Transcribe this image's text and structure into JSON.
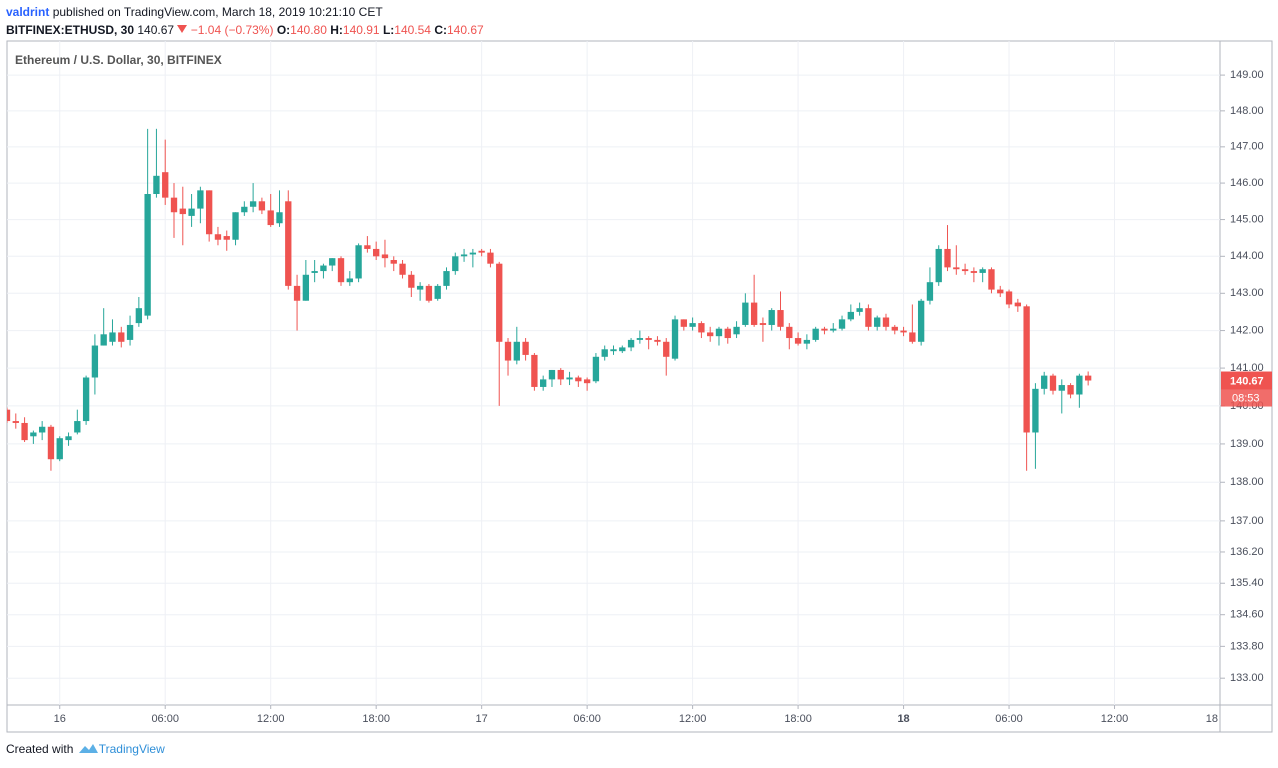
{
  "header": {
    "author": "valdrint",
    "published": "published on TradingView.com, March 18, 2019 10:21:10 CET",
    "symbol": "BITFINEX:ETHUSD, 30",
    "change": "−1.04 (−0.73%)",
    "ohlc_legend": [
      {
        "key": "O:",
        "value": "140.80"
      },
      {
        "key": "H:",
        "value": "140.91"
      },
      {
        "key": "L:",
        "value": "140.54"
      },
      {
        "key": "C:",
        "value": "140.67"
      }
    ]
  },
  "chart_data": {
    "type": "candlestick",
    "title": "Ethereum / U.S. Dollar, 30, BITFINEX",
    "up_color": "#26a69a",
    "down_color": "#ef5350",
    "log_scale": true,
    "grid": true,
    "countdown": "08:53",
    "x": [
      -3,
      -2.5,
      -2,
      -1.5,
      -1,
      -0.5,
      0,
      0.5,
      1,
      1.5,
      2,
      2.5,
      3,
      3.5,
      4,
      4.5,
      5,
      5.5,
      6,
      6.5,
      7,
      7.5,
      8,
      8.5,
      9,
      9.5,
      10,
      10.5,
      11,
      11.5,
      12,
      12.5,
      13,
      13.5,
      14,
      14.5,
      15,
      15.5,
      16,
      16.5,
      17,
      17.5,
      18,
      18.5,
      19,
      19.5,
      20,
      20.5,
      21,
      21.5,
      22,
      22.5,
      23,
      23.5,
      24,
      24.5,
      25,
      25.5,
      26,
      26.5,
      27,
      27.5,
      28,
      28.5,
      29,
      29.5,
      30,
      30.5,
      31,
      31.5,
      32,
      32.5,
      33,
      33.5,
      34,
      34.5,
      35,
      35.5,
      36,
      36.5,
      37,
      37.5,
      38,
      38.5,
      39,
      39.5,
      40,
      40.5,
      41,
      41.5,
      42,
      42.5,
      43,
      43.5,
      44,
      44.5,
      45,
      45.5,
      46,
      46.5,
      47,
      47.5,
      48,
      48.5,
      49,
      49.5,
      50,
      50.5,
      51,
      51.5,
      52,
      52.5,
      53,
      53.5,
      54,
      54.5,
      55,
      55.5,
      56,
      56.5,
      57,
      57.5,
      58,
      58.5
    ],
    "open": [
      139.9,
      139.6,
      139.55,
      139.2,
      139.3,
      139.45,
      138.6,
      139.1,
      139.3,
      139.6,
      140.75,
      141.6,
      141.7,
      141.95,
      141.75,
      142.2,
      142.4,
      145.7,
      146.3,
      145.6,
      145.3,
      145.1,
      145.3,
      145.8,
      144.6,
      144.55,
      144.45,
      145.2,
      145.35,
      145.5,
      145.25,
      144.9,
      145.5,
      143.2,
      142.8,
      143.55,
      143.6,
      143.75,
      143.95,
      143.3,
      143.4,
      144.3,
      144.2,
      144.05,
      143.9,
      143.8,
      143.5,
      143.1,
      143.2,
      142.85,
      143.2,
      143.6,
      144.0,
      144.05,
      144.15,
      144.1,
      143.8,
      141.7,
      141.2,
      141.7,
      141.35,
      140.5,
      140.7,
      140.95,
      140.7,
      140.75,
      140.7,
      140.65,
      141.3,
      141.45,
      141.45,
      141.55,
      141.75,
      141.8,
      141.75,
      141.7,
      141.25,
      142.3,
      142.1,
      142.2,
      141.95,
      141.85,
      142.05,
      141.9,
      142.15,
      142.75,
      142.2,
      142.15,
      142.55,
      142.1,
      141.8,
      141.65,
      141.75,
      142.05,
      142.0,
      142.05,
      142.3,
      142.5,
      142.6,
      142.1,
      142.35,
      142.1,
      142.0,
      141.95,
      141.7,
      142.8,
      143.3,
      144.2,
      143.7,
      143.65,
      143.6,
      143.55,
      143.65,
      143.1,
      143.05,
      142.75,
      142.65,
      139.3,
      140.45,
      140.8,
      140.4,
      140.55,
      140.3,
      140.8
    ],
    "high": [
      139.95,
      139.8,
      139.7,
      139.35,
      139.6,
      139.5,
      139.2,
      139.3,
      139.9,
      140.8,
      141.9,
      142.6,
      142.3,
      142.1,
      142.4,
      142.9,
      147.5,
      147.5,
      147.2,
      146.0,
      145.9,
      145.7,
      145.9,
      145.8,
      144.8,
      144.7,
      145.2,
      145.5,
      146.0,
      145.6,
      145.7,
      145.8,
      145.8,
      143.5,
      143.9,
      143.9,
      143.8,
      143.95,
      144.0,
      143.6,
      144.35,
      144.55,
      144.4,
      144.45,
      144.0,
      143.9,
      143.6,
      143.3,
      143.25,
      143.25,
      143.7,
      144.1,
      144.2,
      144.2,
      144.2,
      144.2,
      143.85,
      141.8,
      142.1,
      141.8,
      141.4,
      140.8,
      140.95,
      141.0,
      140.9,
      140.8,
      140.75,
      141.4,
      141.6,
      141.6,
      141.6,
      141.8,
      142.0,
      141.85,
      141.85,
      141.8,
      142.4,
      142.3,
      142.35,
      142.25,
      142.1,
      142.1,
      142.1,
      142.25,
      143.0,
      143.5,
      142.35,
      142.6,
      143.05,
      142.2,
      141.95,
      141.9,
      142.1,
      142.1,
      142.2,
      142.4,
      142.7,
      142.75,
      142.7,
      142.4,
      142.45,
      142.15,
      142.1,
      142.7,
      142.85,
      143.7,
      144.3,
      144.85,
      144.3,
      143.8,
      143.7,
      143.7,
      143.7,
      143.2,
      143.1,
      142.85,
      142.7,
      140.6,
      140.9,
      140.85,
      140.7,
      140.6,
      140.85,
      140.91
    ],
    "low": [
      139.55,
      139.4,
      139.05,
      139.0,
      139.1,
      138.3,
      138.55,
      138.95,
      139.25,
      139.5,
      140.3,
      141.6,
      141.6,
      141.55,
      141.6,
      142.1,
      142.3,
      145.6,
      145.4,
      144.5,
      144.3,
      144.8,
      144.9,
      144.4,
      144.3,
      144.15,
      144.3,
      145.1,
      145.2,
      145.15,
      144.8,
      144.8,
      143.1,
      142.0,
      142.8,
      143.3,
      143.4,
      143.6,
      143.2,
      143.2,
      143.3,
      144.1,
      143.9,
      143.7,
      143.6,
      143.4,
      142.9,
      142.8,
      142.75,
      142.8,
      143.1,
      143.5,
      143.85,
      143.7,
      144.0,
      143.7,
      140.0,
      140.8,
      141.1,
      141.2,
      140.4,
      140.4,
      140.5,
      140.55,
      140.55,
      140.5,
      140.4,
      140.6,
      141.2,
      141.35,
      141.4,
      141.45,
      141.65,
      141.5,
      141.6,
      140.8,
      141.2,
      142.0,
      142.0,
      141.8,
      141.7,
      141.6,
      141.65,
      141.8,
      142.1,
      142.1,
      141.7,
      142.0,
      142.0,
      141.5,
      141.6,
      141.5,
      141.7,
      141.9,
      141.95,
      142.0,
      142.25,
      142.4,
      142.0,
      142.0,
      142.0,
      141.9,
      141.85,
      141.65,
      141.6,
      142.7,
      143.2,
      143.6,
      143.5,
      143.5,
      143.3,
      143.3,
      143.0,
      142.9,
      142.6,
      142.5,
      138.3,
      138.35,
      140.3,
      140.3,
      139.8,
      140.2,
      139.95,
      140.54
    ],
    "close": [
      139.6,
      139.55,
      139.1,
      139.3,
      139.45,
      138.6,
      139.15,
      139.2,
      139.6,
      140.75,
      141.6,
      141.9,
      141.95,
      141.7,
      142.15,
      142.6,
      145.7,
      146.2,
      145.6,
      145.2,
      145.15,
      145.3,
      145.8,
      144.6,
      144.45,
      144.45,
      145.2,
      145.35,
      145.5,
      145.25,
      144.85,
      145.2,
      143.2,
      142.8,
      143.5,
      143.6,
      143.75,
      143.95,
      143.3,
      143.4,
      144.3,
      144.2,
      144.0,
      143.95,
      143.8,
      143.5,
      143.15,
      143.2,
      142.8,
      143.2,
      143.6,
      144.0,
      144.05,
      144.1,
      144.1,
      143.8,
      141.7,
      141.2,
      141.7,
      141.35,
      140.5,
      140.7,
      140.95,
      140.7,
      140.75,
      140.65,
      140.6,
      141.3,
      141.5,
      141.5,
      141.55,
      141.75,
      141.8,
      141.75,
      141.7,
      141.3,
      142.3,
      142.1,
      142.2,
      141.95,
      141.85,
      142.05,
      141.8,
      142.1,
      142.75,
      142.15,
      142.15,
      142.55,
      142.1,
      141.8,
      141.65,
      141.75,
      142.05,
      142.0,
      142.05,
      142.3,
      142.5,
      142.6,
      142.1,
      142.35,
      142.1,
      142.0,
      141.95,
      141.7,
      142.8,
      143.3,
      144.2,
      143.7,
      143.65,
      143.6,
      143.55,
      143.65,
      143.1,
      143.0,
      142.7,
      142.65,
      139.3,
      140.45,
      140.8,
      140.4,
      140.55,
      140.3,
      140.8,
      140.67
    ],
    "xlim": [
      -3,
      66
    ],
    "xticks": [
      {
        "value": 0,
        "label": "16"
      },
      {
        "value": 6,
        "label": "06:00"
      },
      {
        "value": 12,
        "label": "12:00"
      },
      {
        "value": 18,
        "label": "18:00"
      },
      {
        "value": 24,
        "label": "17"
      },
      {
        "value": 30,
        "label": "06:00"
      },
      {
        "value": 36,
        "label": "12:00"
      },
      {
        "value": 42,
        "label": "18:00"
      },
      {
        "value": 48,
        "label": "18",
        "bold": true
      },
      {
        "value": 54,
        "label": "06:00"
      },
      {
        "value": 60,
        "label": "12:00"
      },
      {
        "value": 66,
        "label": "18"
      }
    ],
    "ylim": [
      132.33,
      149.96
    ],
    "yticks": [
      {
        "value": 133,
        "label": "133.00"
      },
      {
        "value": 133.8,
        "label": "133.80"
      },
      {
        "value": 134.6,
        "label": "134.60"
      },
      {
        "value": 135.4,
        "label": "135.40"
      },
      {
        "value": 136.2,
        "label": "136.20"
      },
      {
        "value": 137,
        "label": "137.00"
      },
      {
        "value": 138,
        "label": "138.00"
      },
      {
        "value": 139,
        "label": "139.00"
      },
      {
        "value": 140,
        "label": "140.00"
      },
      {
        "value": 141,
        "label": "141.00"
      },
      {
        "value": 142,
        "label": "142.00"
      },
      {
        "value": 143,
        "label": "143.00"
      },
      {
        "value": 144,
        "label": "144.00"
      },
      {
        "value": 145,
        "label": "145.00"
      },
      {
        "value": 146,
        "label": "146.00"
      },
      {
        "value": 147,
        "label": "147.00"
      },
      {
        "value": 148,
        "label": "148.00"
      },
      {
        "value": 149,
        "label": "149.00"
      }
    ]
  },
  "footer": {
    "created": "Created with",
    "brand": "TradingView"
  }
}
